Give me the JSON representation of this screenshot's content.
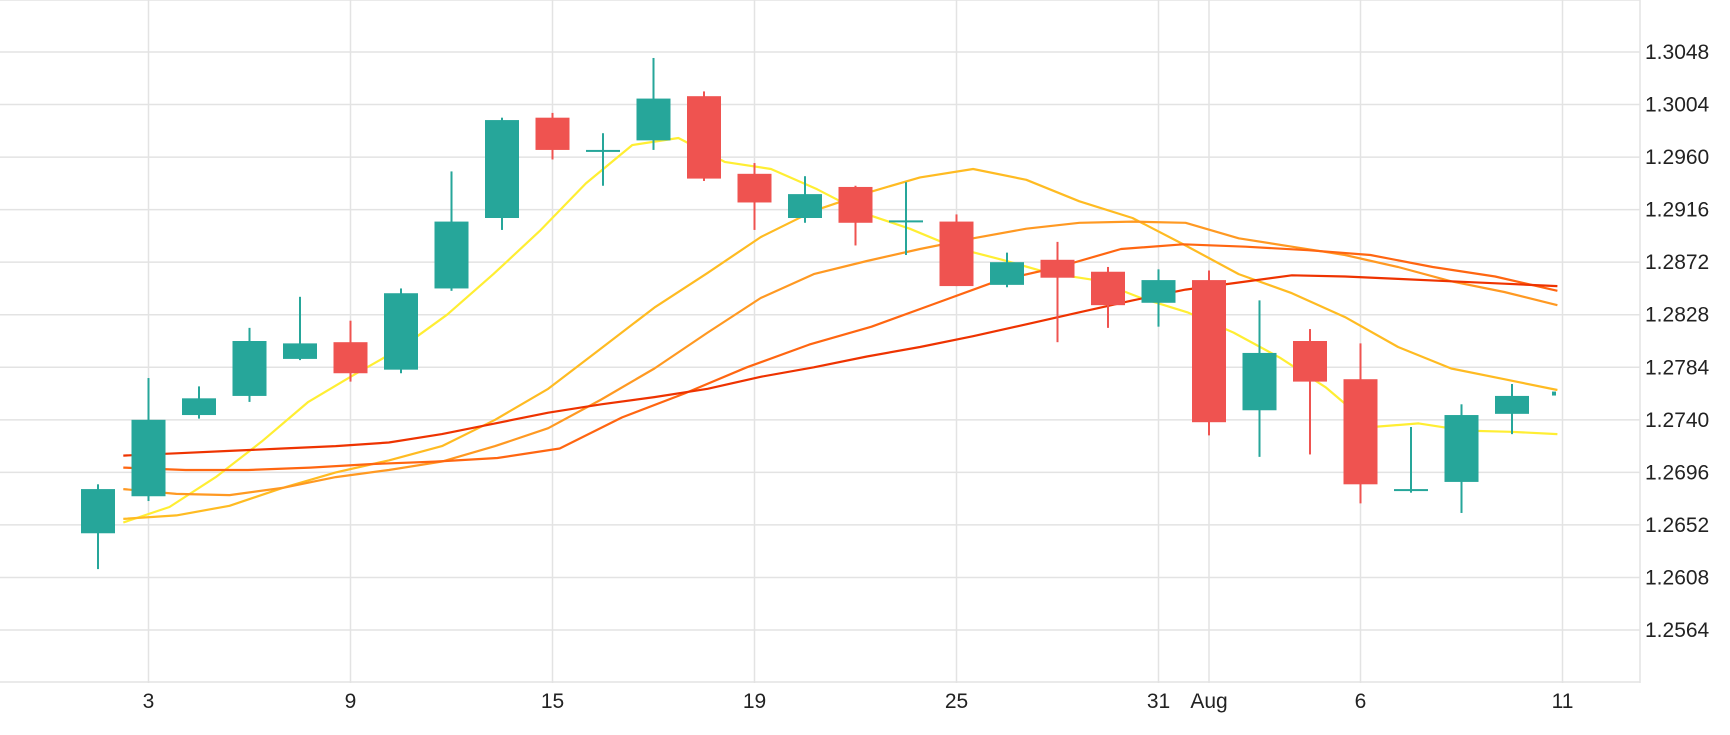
{
  "chart_data": {
    "type": "candlestick",
    "title": "",
    "xlabel": "",
    "ylabel": "",
    "y_axis_position": "right",
    "grid": true,
    "ylim": [
      1.252,
      1.3092
    ],
    "y_ticks": [
      "1.3048",
      "1.3004",
      "1.2960",
      "1.2916",
      "1.2872",
      "1.2828",
      "1.2784",
      "1.2740",
      "1.2696",
      "1.2652",
      "1.2608",
      "1.2564"
    ],
    "x_ticks": [
      {
        "label": "3",
        "index": 1
      },
      {
        "label": "9",
        "index": 5
      },
      {
        "label": "15",
        "index": 9
      },
      {
        "label": "19",
        "index": 13
      },
      {
        "label": "25",
        "index": 17
      },
      {
        "label": "31",
        "index": 21
      },
      {
        "label": "Aug",
        "index": 22
      },
      {
        "label": "6",
        "index": 25
      },
      {
        "label": "11",
        "index": 29
      }
    ],
    "colors": {
      "up": "#26a69a",
      "down": "#ef5350",
      "grid": "#e3e3e3",
      "text": "#222222",
      "ma": [
        "#ffee33",
        "#ffbb22",
        "#ff9922",
        "#ff6611",
        "#ee3300"
      ]
    },
    "candles": [
      {
        "o": 1.2645,
        "h": 1.2686,
        "l": 1.2615,
        "c": 1.2682
      },
      {
        "o": 1.2676,
        "h": 1.2775,
        "l": 1.2672,
        "c": 1.274
      },
      {
        "o": 1.2744,
        "h": 1.2768,
        "l": 1.2741,
        "c": 1.2758
      },
      {
        "o": 1.276,
        "h": 1.2817,
        "l": 1.2755,
        "c": 1.2806
      },
      {
        "o": 1.2791,
        "h": 1.2843,
        "l": 1.279,
        "c": 1.2804
      },
      {
        "o": 1.2805,
        "h": 1.2823,
        "l": 1.2772,
        "c": 1.2779
      },
      {
        "o": 1.2782,
        "h": 1.285,
        "l": 1.2779,
        "c": 1.2846
      },
      {
        "o": 1.285,
        "h": 1.2948,
        "l": 1.2848,
        "c": 1.2906
      },
      {
        "o": 1.2909,
        "h": 1.2993,
        "l": 1.2899,
        "c": 1.2991
      },
      {
        "o": 1.2993,
        "h": 1.2997,
        "l": 1.2958,
        "c": 1.2966
      },
      {
        "o": 1.2966,
        "h": 1.298,
        "l": 1.2936,
        "c": 1.2966
      },
      {
        "o": 1.2974,
        "h": 1.3043,
        "l": 1.2966,
        "c": 1.3009
      },
      {
        "o": 1.3011,
        "h": 1.3015,
        "l": 1.294,
        "c": 1.2942
      },
      {
        "o": 1.2946,
        "h": 1.2955,
        "l": 1.2899,
        "c": 1.2922
      },
      {
        "o": 1.2909,
        "h": 1.2944,
        "l": 1.2905,
        "c": 1.2929
      },
      {
        "o": 1.2935,
        "h": 1.2936,
        "l": 1.2886,
        "c": 1.2905
      },
      {
        "o": 1.2907,
        "h": 1.2939,
        "l": 1.2878,
        "c": 1.2907
      },
      {
        "o": 1.2906,
        "h": 1.2912,
        "l": 1.2852,
        "c": 1.2852
      },
      {
        "o": 1.2853,
        "h": 1.288,
        "l": 1.2851,
        "c": 1.2872
      },
      {
        "o": 1.2874,
        "h": 1.2889,
        "l": 1.2805,
        "c": 1.2859
      },
      {
        "o": 1.2864,
        "h": 1.2868,
        "l": 1.2817,
        "c": 1.2836
      },
      {
        "o": 1.2838,
        "h": 1.2866,
        "l": 1.2818,
        "c": 1.2857
      },
      {
        "o": 1.2857,
        "h": 1.2865,
        "l": 1.2727,
        "c": 1.2738
      },
      {
        "o": 1.2748,
        "h": 1.284,
        "l": 1.2709,
        "c": 1.2796
      },
      {
        "o": 1.2806,
        "h": 1.2816,
        "l": 1.2711,
        "c": 1.2772
      },
      {
        "o": 1.2774,
        "h": 1.2804,
        "l": 1.267,
        "c": 1.2686
      },
      {
        "o": 1.2682,
        "h": 1.2734,
        "l": 1.2679,
        "c": 1.2682
      },
      {
        "o": 1.2688,
        "h": 1.2753,
        "l": 1.2662,
        "c": 1.2744
      },
      {
        "o": 1.2745,
        "h": 1.277,
        "l": 1.2728,
        "c": 1.276
      }
    ],
    "moving_averages": [
      {
        "color": "#ffee33",
        "x_start": 0.5,
        "values": [
          1.2654,
          1.2667,
          1.2692,
          1.2722,
          1.2755,
          1.2778,
          1.28,
          1.2828,
          1.2862,
          1.2898,
          1.2938,
          1.297,
          1.2976,
          1.2956,
          1.295,
          1.2933,
          1.2913,
          1.29,
          1.2884,
          1.2874,
          1.2863,
          1.2857,
          1.2842,
          1.283,
          1.2813,
          1.2792,
          1.2767,
          1.2734,
          1.2737,
          1.2731,
          1.273,
          1.2728
        ]
      },
      {
        "color": "#ffbb22",
        "x_start": 0.5,
        "values": [
          1.2657,
          1.266,
          1.2668,
          1.2683,
          1.2696,
          1.2706,
          1.2718,
          1.274,
          1.2766,
          1.28,
          1.2834,
          1.2863,
          1.2893,
          1.2915,
          1.293,
          1.2943,
          1.295,
          1.2941,
          1.2923,
          1.2909,
          1.2886,
          1.2862,
          1.2846,
          1.2826,
          1.2801,
          1.2783,
          1.2774,
          1.2765
        ]
      },
      {
        "color": "#ff9922",
        "x_start": 0.5,
        "values": [
          1.2682,
          1.2678,
          1.2677,
          1.2683,
          1.2692,
          1.2698,
          1.2705,
          1.2718,
          1.2733,
          1.2757,
          1.2783,
          1.2813,
          1.2842,
          1.2862,
          1.2873,
          1.2883,
          1.2892,
          1.29,
          1.2905,
          1.2906,
          1.2905,
          1.2892,
          1.2885,
          1.2878,
          1.2868,
          1.2856,
          1.2847,
          1.2836
        ]
      },
      {
        "color": "#ff6611",
        "x_start": 0.5,
        "values": [
          1.27,
          1.2698,
          1.2698,
          1.27,
          1.2703,
          1.2705,
          1.2708,
          1.2716,
          1.2742,
          1.2762,
          1.2784,
          1.2803,
          1.2818,
          1.2837,
          1.2856,
          1.2868,
          1.2883,
          1.2887,
          1.2885,
          1.2882,
          1.2878,
          1.2868,
          1.286,
          1.2848
        ]
      },
      {
        "color": "#ee3300",
        "x_start": 0.5,
        "values": [
          1.271,
          1.2712,
          1.2714,
          1.2716,
          1.2718,
          1.2721,
          1.2728,
          1.2737,
          1.2746,
          1.2753,
          1.2759,
          1.2766,
          1.2776,
          1.2784,
          1.2793,
          1.2801,
          1.281,
          1.282,
          1.283,
          1.284,
          1.2849,
          1.2855,
          1.2861,
          1.286,
          1.2858,
          1.2856,
          1.2854,
          1.2852
        ]
      }
    ]
  }
}
